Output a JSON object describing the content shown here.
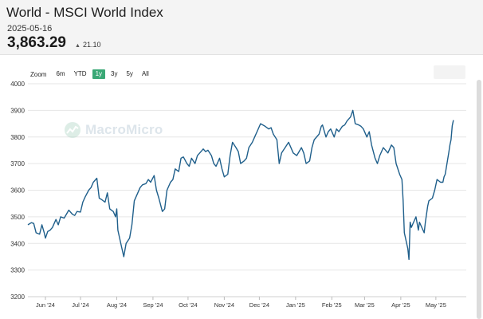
{
  "header": {
    "title": "World - MSCI World Index",
    "date": "2025-05-16",
    "price": "3,863.29",
    "change": "21.10"
  },
  "zoom": {
    "label": "Zoom",
    "options": [
      "6m",
      "YTD",
      "1y",
      "3y",
      "5y",
      "All"
    ],
    "active": "1y"
  },
  "watermark": {
    "text": "MacroMicro",
    "icon": "macromicro-logo-icon"
  },
  "colors": {
    "line": "#1f5f8b",
    "accent": "#3aa876",
    "grid": "#e6e6e6"
  },
  "chart_data": {
    "type": "line",
    "title": "World - MSCI World Index",
    "xlabel": "",
    "ylabel": "",
    "ylim": [
      3200,
      4000
    ],
    "yticks": [
      3200,
      3300,
      3400,
      3500,
      3600,
      3700,
      3800,
      3900,
      4000
    ],
    "xlim": [
      "2024-05-17",
      "2025-05-27"
    ],
    "xticks": [
      {
        "date": "2024-06-01",
        "label": "Jun '24"
      },
      {
        "date": "2024-07-01",
        "label": "Jul '24"
      },
      {
        "date": "2024-08-01",
        "label": "Aug '24"
      },
      {
        "date": "2024-09-01",
        "label": "Sep '24"
      },
      {
        "date": "2024-10-01",
        "label": "Oct '24"
      },
      {
        "date": "2024-11-01",
        "label": "Nov '24"
      },
      {
        "date": "2024-12-01",
        "label": "Dec '24"
      },
      {
        "date": "2025-01-01",
        "label": "Jan '25"
      },
      {
        "date": "2025-02-01",
        "label": "Feb '25"
      },
      {
        "date": "2025-03-01",
        "label": "Mar '25"
      },
      {
        "date": "2025-04-01",
        "label": "Apr '25"
      },
      {
        "date": "2025-05-01",
        "label": "May '25"
      }
    ],
    "grid": true,
    "series": [
      {
        "name": "",
        "color": "#1f5f8b",
        "points": [
          [
            "2024-05-17",
            3470
          ],
          [
            "2024-05-20",
            3478
          ],
          [
            "2024-05-22",
            3475
          ],
          [
            "2024-05-24",
            3440
          ],
          [
            "2024-05-27",
            3435
          ],
          [
            "2024-05-29",
            3470
          ],
          [
            "2024-05-31",
            3440
          ],
          [
            "2024-06-01",
            3420
          ],
          [
            "2024-06-03",
            3445
          ],
          [
            "2024-06-05",
            3450
          ],
          [
            "2024-06-07",
            3460
          ],
          [
            "2024-06-10",
            3490
          ],
          [
            "2024-06-12",
            3470
          ],
          [
            "2024-06-14",
            3500
          ],
          [
            "2024-06-17",
            3495
          ],
          [
            "2024-06-19",
            3510
          ],
          [
            "2024-06-21",
            3525
          ],
          [
            "2024-06-24",
            3510
          ],
          [
            "2024-06-26",
            3505
          ],
          [
            "2024-06-28",
            3520
          ],
          [
            "2024-07-01",
            3518
          ],
          [
            "2024-07-03",
            3555
          ],
          [
            "2024-07-05",
            3575
          ],
          [
            "2024-07-08",
            3600
          ],
          [
            "2024-07-10",
            3610
          ],
          [
            "2024-07-12",
            3630
          ],
          [
            "2024-07-15",
            3645
          ],
          [
            "2024-07-17",
            3570
          ],
          [
            "2024-07-19",
            3565
          ],
          [
            "2024-07-22",
            3555
          ],
          [
            "2024-07-24",
            3590
          ],
          [
            "2024-07-26",
            3530
          ],
          [
            "2024-07-29",
            3520
          ],
          [
            "2024-07-31",
            3500
          ],
          [
            "2024-08-01",
            3530
          ],
          [
            "2024-08-02",
            3450
          ],
          [
            "2024-08-05",
            3390
          ],
          [
            "2024-08-07",
            3350
          ],
          [
            "2024-08-09",
            3400
          ],
          [
            "2024-08-12",
            3420
          ],
          [
            "2024-08-14",
            3470
          ],
          [
            "2024-08-16",
            3560
          ],
          [
            "2024-08-19",
            3590
          ],
          [
            "2024-08-21",
            3610
          ],
          [
            "2024-08-23",
            3620
          ],
          [
            "2024-08-26",
            3625
          ],
          [
            "2024-08-28",
            3640
          ],
          [
            "2024-08-30",
            3630
          ],
          [
            "2024-09-02",
            3655
          ],
          [
            "2024-09-04",
            3600
          ],
          [
            "2024-09-06",
            3570
          ],
          [
            "2024-09-09",
            3520
          ],
          [
            "2024-09-11",
            3530
          ],
          [
            "2024-09-13",
            3600
          ],
          [
            "2024-09-16",
            3630
          ],
          [
            "2024-09-18",
            3640
          ],
          [
            "2024-09-20",
            3680
          ],
          [
            "2024-09-23",
            3670
          ],
          [
            "2024-09-25",
            3720
          ],
          [
            "2024-09-27",
            3725
          ],
          [
            "2024-09-30",
            3700
          ],
          [
            "2024-10-02",
            3690
          ],
          [
            "2024-10-04",
            3720
          ],
          [
            "2024-10-07",
            3700
          ],
          [
            "2024-10-09",
            3730
          ],
          [
            "2024-10-11",
            3740
          ],
          [
            "2024-10-14",
            3755
          ],
          [
            "2024-10-16",
            3745
          ],
          [
            "2024-10-18",
            3750
          ],
          [
            "2024-10-21",
            3730
          ],
          [
            "2024-10-23",
            3700
          ],
          [
            "2024-10-25",
            3690
          ],
          [
            "2024-10-28",
            3720
          ],
          [
            "2024-10-30",
            3680
          ],
          [
            "2024-11-01",
            3650
          ],
          [
            "2024-11-04",
            3660
          ],
          [
            "2024-11-06",
            3730
          ],
          [
            "2024-11-08",
            3780
          ],
          [
            "2024-11-11",
            3760
          ],
          [
            "2024-11-13",
            3745
          ],
          [
            "2024-11-15",
            3700
          ],
          [
            "2024-11-18",
            3710
          ],
          [
            "2024-11-20",
            3720
          ],
          [
            "2024-11-22",
            3760
          ],
          [
            "2024-11-25",
            3780
          ],
          [
            "2024-11-27",
            3800
          ],
          [
            "2024-11-29",
            3820
          ],
          [
            "2024-12-02",
            3850
          ],
          [
            "2024-12-04",
            3845
          ],
          [
            "2024-12-06",
            3840
          ],
          [
            "2024-12-09",
            3830
          ],
          [
            "2024-12-11",
            3835
          ],
          [
            "2024-12-13",
            3810
          ],
          [
            "2024-12-16",
            3790
          ],
          [
            "2024-12-18",
            3700
          ],
          [
            "2024-12-20",
            3740
          ],
          [
            "2024-12-23",
            3760
          ],
          [
            "2024-12-26",
            3780
          ],
          [
            "2024-12-30",
            3740
          ],
          [
            "2025-01-02",
            3730
          ],
          [
            "2025-01-06",
            3760
          ],
          [
            "2025-01-08",
            3740
          ],
          [
            "2025-01-10",
            3700
          ],
          [
            "2025-01-13",
            3710
          ],
          [
            "2025-01-15",
            3760
          ],
          [
            "2025-01-17",
            3790
          ],
          [
            "2025-01-21",
            3810
          ],
          [
            "2025-01-23",
            3840
          ],
          [
            "2025-01-24",
            3845
          ],
          [
            "2025-01-27",
            3800
          ],
          [
            "2025-01-29",
            3820
          ],
          [
            "2025-01-31",
            3830
          ],
          [
            "2025-02-03",
            3800
          ],
          [
            "2025-02-05",
            3830
          ],
          [
            "2025-02-07",
            3820
          ],
          [
            "2025-02-10",
            3840
          ],
          [
            "2025-02-12",
            3845
          ],
          [
            "2025-02-14",
            3860
          ],
          [
            "2025-02-17",
            3875
          ],
          [
            "2025-02-19",
            3900
          ],
          [
            "2025-02-21",
            3850
          ],
          [
            "2025-02-24",
            3845
          ],
          [
            "2025-02-26",
            3840
          ],
          [
            "2025-02-28",
            3830
          ],
          [
            "2025-03-03",
            3800
          ],
          [
            "2025-03-05",
            3820
          ],
          [
            "2025-03-07",
            3770
          ],
          [
            "2025-03-10",
            3720
          ],
          [
            "2025-03-12",
            3700
          ],
          [
            "2025-03-14",
            3730
          ],
          [
            "2025-03-17",
            3760
          ],
          [
            "2025-03-19",
            3750
          ],
          [
            "2025-03-21",
            3740
          ],
          [
            "2025-03-24",
            3770
          ],
          [
            "2025-03-26",
            3760
          ],
          [
            "2025-03-28",
            3700
          ],
          [
            "2025-03-31",
            3660
          ],
          [
            "2025-04-02",
            3640
          ],
          [
            "2025-04-03",
            3560
          ],
          [
            "2025-04-04",
            3440
          ],
          [
            "2025-04-07",
            3380
          ],
          [
            "2025-04-08",
            3340
          ],
          [
            "2025-04-09",
            3480
          ],
          [
            "2025-04-10",
            3460
          ],
          [
            "2025-04-11",
            3470
          ],
          [
            "2025-04-14",
            3500
          ],
          [
            "2025-04-16",
            3450
          ],
          [
            "2025-04-17",
            3480
          ],
          [
            "2025-04-21",
            3440
          ],
          [
            "2025-04-22",
            3480
          ],
          [
            "2025-04-24",
            3540
          ],
          [
            "2025-04-25",
            3560
          ],
          [
            "2025-04-28",
            3570
          ],
          [
            "2025-04-30",
            3600
          ],
          [
            "2025-05-02",
            3640
          ],
          [
            "2025-05-05",
            3630
          ],
          [
            "2025-05-07",
            3630
          ],
          [
            "2025-05-08",
            3650
          ],
          [
            "2025-05-09",
            3660
          ],
          [
            "2025-05-12",
            3740
          ],
          [
            "2025-05-13",
            3770
          ],
          [
            "2025-05-14",
            3790
          ],
          [
            "2025-05-15",
            3842
          ],
          [
            "2025-05-16",
            3863
          ]
        ]
      }
    ]
  }
}
